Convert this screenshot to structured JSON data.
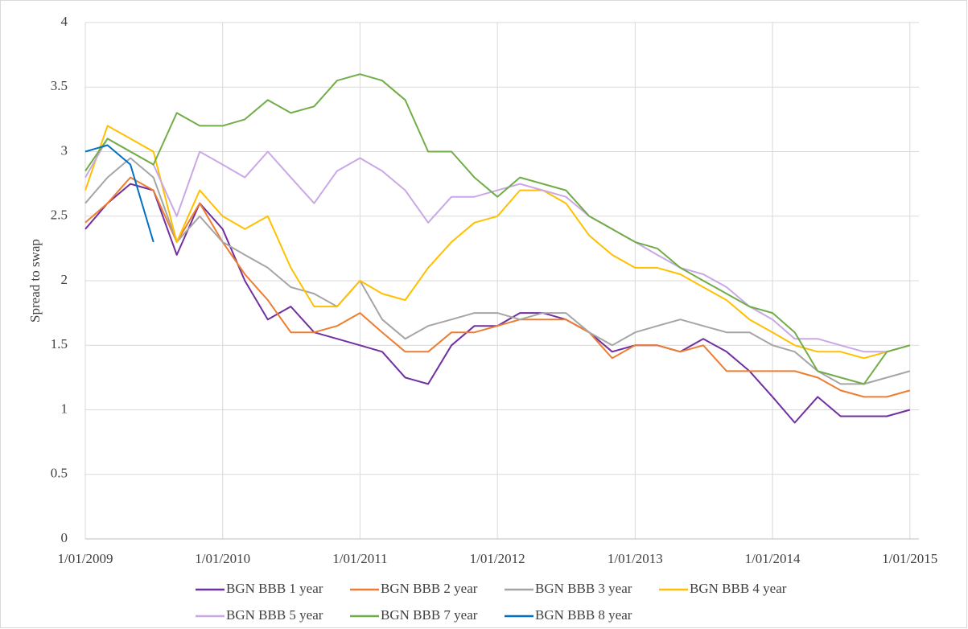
{
  "chart_data": {
    "type": "line",
    "ylabel": "Spread to swap",
    "x": [
      "2009-01-01",
      "2009-03-01",
      "2009-05-01",
      "2009-07-01",
      "2009-09-01",
      "2009-11-01",
      "2010-01-01",
      "2010-03-01",
      "2010-05-01",
      "2010-07-01",
      "2010-09-01",
      "2010-11-01",
      "2011-01-01",
      "2011-03-01",
      "2011-05-01",
      "2011-07-01",
      "2011-09-01",
      "2011-11-01",
      "2012-01-01",
      "2012-03-01",
      "2012-05-01",
      "2012-07-01",
      "2012-09-01",
      "2012-11-01",
      "2013-01-01",
      "2013-03-01",
      "2013-05-01",
      "2013-07-01",
      "2013-09-01",
      "2013-11-01",
      "2014-01-01",
      "2014-03-01",
      "2014-05-01",
      "2014-07-01",
      "2014-09-01",
      "2014-11-01",
      "2015-01-01"
    ],
    "series": [
      {
        "name": "BGN BBB 1 year",
        "color": "#7030a0",
        "values": [
          2.4,
          2.6,
          2.75,
          2.7,
          2.2,
          2.6,
          2.4,
          2.0,
          1.7,
          1.8,
          1.6,
          1.55,
          1.5,
          1.45,
          1.25,
          1.2,
          1.5,
          1.65,
          1.65,
          1.75,
          1.75,
          1.7,
          1.6,
          1.45,
          1.5,
          1.5,
          1.45,
          1.55,
          1.45,
          1.3,
          1.1,
          0.9,
          1.1,
          0.95,
          0.95,
          0.95,
          1.0
        ]
      },
      {
        "name": "BGN BBB 2 year",
        "color": "#ed7d31",
        "values": [
          2.45,
          2.6,
          2.8,
          2.7,
          2.3,
          2.6,
          2.3,
          2.05,
          1.85,
          1.6,
          1.6,
          1.65,
          1.75,
          1.6,
          1.45,
          1.45,
          1.6,
          1.6,
          1.65,
          1.7,
          1.7,
          1.7,
          1.6,
          1.4,
          1.5,
          1.5,
          1.45,
          1.5,
          1.3,
          1.3,
          1.3,
          1.3,
          1.25,
          1.15,
          1.1,
          1.1,
          1.15
        ]
      },
      {
        "name": "BGN BBB 3 year",
        "color": "#a5a5a5",
        "values": [
          2.6,
          2.8,
          2.95,
          2.8,
          2.3,
          2.5,
          2.3,
          2.2,
          2.1,
          1.95,
          1.9,
          1.8,
          2.0,
          1.7,
          1.55,
          1.65,
          1.7,
          1.75,
          1.75,
          1.7,
          1.75,
          1.75,
          1.6,
          1.5,
          1.6,
          1.65,
          1.7,
          1.65,
          1.6,
          1.6,
          1.5,
          1.45,
          1.3,
          1.2,
          1.2,
          1.25,
          1.3
        ]
      },
      {
        "name": "BGN BBB 4 year",
        "color": "#ffc000",
        "values": [
          2.7,
          3.2,
          3.1,
          3.0,
          2.3,
          2.7,
          2.5,
          2.4,
          2.5,
          2.1,
          1.8,
          1.8,
          2.0,
          1.9,
          1.85,
          2.1,
          2.3,
          2.45,
          2.5,
          2.7,
          2.7,
          2.6,
          2.35,
          2.2,
          2.1,
          2.1,
          2.05,
          1.95,
          1.85,
          1.7,
          1.6,
          1.5,
          1.45,
          1.45,
          1.4,
          1.45,
          1.5
        ]
      },
      {
        "name": "BGN BBB 5 year",
        "color": "#c9a8e6",
        "values": [
          2.8,
          3.1,
          3.0,
          2.9,
          2.5,
          3.0,
          2.9,
          2.8,
          3.0,
          2.8,
          2.6,
          2.85,
          2.95,
          2.85,
          2.7,
          2.45,
          2.65,
          2.65,
          2.7,
          2.75,
          2.7,
          2.65,
          2.5,
          2.4,
          2.3,
          2.2,
          2.1,
          2.05,
          1.95,
          1.8,
          1.7,
          1.55,
          1.55,
          1.5,
          1.45,
          1.45,
          1.5
        ]
      },
      {
        "name": "BGN BBB 7 year",
        "color": "#70ad47",
        "values": [
          2.85,
          3.1,
          3.0,
          2.9,
          3.3,
          3.2,
          3.2,
          3.25,
          3.4,
          3.3,
          3.35,
          3.55,
          3.6,
          3.55,
          3.4,
          3.0,
          3.0,
          2.8,
          2.65,
          2.8,
          2.75,
          2.7,
          2.5,
          2.4,
          2.3,
          2.25,
          2.1,
          2.0,
          1.9,
          1.8,
          1.75,
          1.6,
          1.3,
          1.25,
          1.2,
          1.45,
          1.5
        ]
      },
      {
        "name": "BGN BBB 8 year",
        "color": "#0070c0",
        "values": [
          3.0,
          3.05,
          2.9,
          2.3,
          null,
          null,
          null,
          null,
          null,
          null,
          null,
          null,
          null,
          null,
          null,
          null,
          null,
          null,
          null,
          null,
          null,
          null,
          null,
          null,
          null,
          null,
          null,
          null,
          null,
          null,
          null,
          null,
          null,
          null,
          null,
          null,
          null
        ]
      }
    ],
    "xlim": [
      "2009-01-01",
      "2015-01-25"
    ],
    "xticks": [
      {
        "value": "2009-01-01",
        "label": "1/01/2009"
      },
      {
        "value": "2010-01-01",
        "label": "1/01/2010"
      },
      {
        "value": "2011-01-01",
        "label": "1/01/2011"
      },
      {
        "value": "2012-01-01",
        "label": "1/01/2012"
      },
      {
        "value": "2013-01-01",
        "label": "1/01/2013"
      },
      {
        "value": "2014-01-01",
        "label": "1/01/2014"
      },
      {
        "value": "2015-01-01",
        "label": "1/01/2015"
      }
    ],
    "ylim": [
      0,
      4
    ],
    "yticks": [
      0,
      0.5,
      1,
      1.5,
      2,
      2.5,
      3,
      3.5,
      4
    ],
    "grid": true,
    "legend": "bottom"
  }
}
